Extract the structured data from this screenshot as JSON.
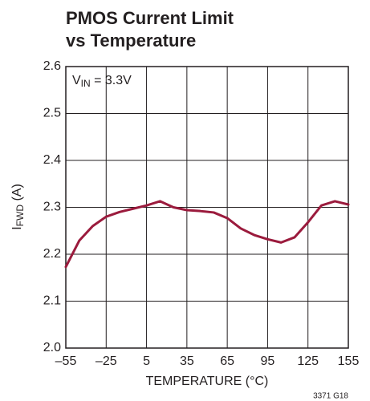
{
  "chart_data": {
    "type": "line",
    "title": [
      "PMOS Current Limit",
      "vs Temperature"
    ],
    "xlabel": "TEMPERATURE (°C)",
    "ylabel": {
      "main": "I",
      "sub": "FWD",
      "rest": " (A)"
    },
    "annotation": {
      "main": "V",
      "sub": "IN",
      "rest": " = 3.3V"
    },
    "footnote": "3371 G18",
    "xlim": [
      -55,
      155
    ],
    "xticks": [
      {
        "value": -55,
        "label": "–55"
      },
      {
        "value": -25,
        "label": "–25"
      },
      5,
      35,
      65,
      95,
      125,
      155
    ],
    "ylim": [
      2.0,
      2.6
    ],
    "yticks": [
      {
        "value": 2.0,
        "label": "2.0"
      },
      2.1,
      2.2,
      2.3,
      2.4,
      2.5,
      2.6
    ],
    "grid": true,
    "x": [
      -55,
      -45,
      -35,
      -25,
      -15,
      -5,
      5,
      15,
      25,
      35,
      45,
      55,
      65,
      75,
      85,
      95,
      105,
      115,
      125,
      135,
      145,
      155
    ],
    "series": [
      {
        "name": "PMOS Current Limit",
        "color": "#9b1b3d",
        "values": [
          2.173,
          2.229,
          2.26,
          2.28,
          2.29,
          2.297,
          2.304,
          2.313,
          2.3,
          2.294,
          2.292,
          2.289,
          2.277,
          2.255,
          2.241,
          2.232,
          2.225,
          2.236,
          2.268,
          2.304,
          2.313,
          2.306
        ]
      }
    ]
  }
}
